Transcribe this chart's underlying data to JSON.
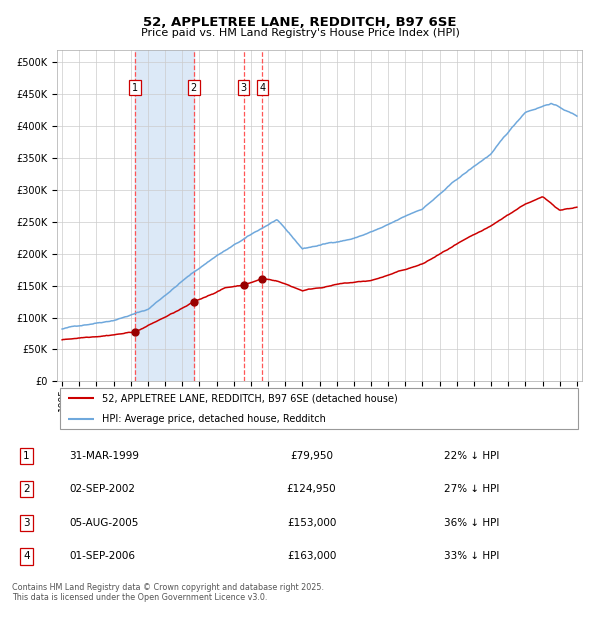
{
  "title": "52, APPLETREE LANE, REDDITCH, B97 6SE",
  "subtitle": "Price paid vs. HM Land Registry's House Price Index (HPI)",
  "legend_line1": "52, APPLETREE LANE, REDDITCH, B97 6SE (detached house)",
  "legend_line2": "HPI: Average price, detached house, Redditch",
  "footer": "Contains HM Land Registry data © Crown copyright and database right 2025.\nThis data is licensed under the Open Government Licence v3.0.",
  "transactions": [
    {
      "num": 1,
      "date": "31-MAR-1999",
      "price": 79950,
      "pct": "22% ↓ HPI",
      "year": 1999.25
    },
    {
      "num": 2,
      "date": "02-SEP-2002",
      "price": 124950,
      "pct": "27% ↓ HPI",
      "year": 2002.67
    },
    {
      "num": 3,
      "date": "05-AUG-2005",
      "price": 153000,
      "pct": "36% ↓ HPI",
      "year": 2005.58
    },
    {
      "num": 4,
      "date": "01-SEP-2006",
      "price": 163000,
      "pct": "33% ↓ HPI",
      "year": 2006.67
    }
  ],
  "hpi_color": "#6fa8dc",
  "price_color": "#cc0000",
  "dashed_color": "#ff4444",
  "shade_color": "#dce9f7",
  "marker_color": "#990000",
  "background_color": "#ffffff",
  "grid_color": "#cccccc",
  "ylim": [
    0,
    520000
  ],
  "yticks": [
    0,
    50000,
    100000,
    150000,
    200000,
    250000,
    300000,
    350000,
    400000,
    450000,
    500000
  ],
  "start_year": 1995,
  "end_year": 2025
}
